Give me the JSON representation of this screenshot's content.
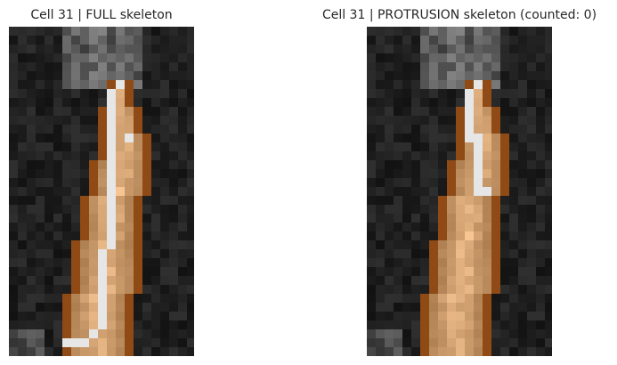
{
  "panels": [
    {
      "title": "Cell 31 | FULL skeleton"
    },
    {
      "title": "Cell 31 | PROTRUSION skeleton (counted: 0)"
    }
  ],
  "colors": {
    "mask_outline": "#8f4a15",
    "skeleton": "#e6e6e6",
    "background_dark": "#111111"
  }
}
